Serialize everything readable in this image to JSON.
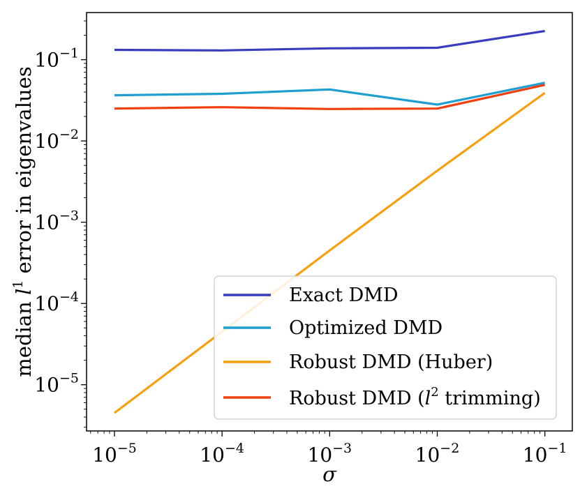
{
  "chart_data": {
    "type": "line",
    "xscale": "log",
    "yscale": "log",
    "x": [
      1e-05,
      0.0001,
      0.001,
      0.01,
      0.1
    ],
    "xlim": [
      5.5e-06,
      0.18
    ],
    "ylim": [
      2.7e-06,
      0.38
    ],
    "xlabel": "σ",
    "ylabel": {
      "prefix": "median ",
      "var": "l",
      "sup": "1",
      "suffix": " error in eigenvalues"
    },
    "xticks": [
      {
        "value": 1e-05,
        "base": "10",
        "exp": "−5"
      },
      {
        "value": 0.0001,
        "base": "10",
        "exp": "−4"
      },
      {
        "value": 0.001,
        "base": "10",
        "exp": "−3"
      },
      {
        "value": 0.01,
        "base": "10",
        "exp": "−2"
      },
      {
        "value": 0.1,
        "base": "10",
        "exp": "−1"
      }
    ],
    "yticks": [
      {
        "value": 1e-05,
        "base": "10",
        "exp": "−5"
      },
      {
        "value": 0.0001,
        "base": "10",
        "exp": "−4"
      },
      {
        "value": 0.001,
        "base": "10",
        "exp": "−3"
      },
      {
        "value": 0.01,
        "base": "10",
        "exp": "−2"
      },
      {
        "value": 0.1,
        "base": "10",
        "exp": "−1"
      }
    ],
    "grid": false,
    "legend_position": "lower-right",
    "series": [
      {
        "name": "Exact DMD",
        "color": "#3a3cbf",
        "values": [
          0.132,
          0.13,
          0.138,
          0.14,
          0.225
        ]
      },
      {
        "name": "Optimized DMD",
        "color": "#1f9fd0",
        "values": [
          0.0365,
          0.038,
          0.043,
          0.028,
          0.052
        ]
      },
      {
        "name": "Robust DMD (Huber)",
        "color": "#f5a00f",
        "values": [
          4.5e-06,
          4.5e-05,
          0.00045,
          0.0043,
          0.039
        ]
      },
      {
        "name": "Robust DMD (",
        "name_var": "l",
        "name_sup": "2",
        "name_suffix": " trimming)",
        "color": "#f04010",
        "values": [
          0.025,
          0.026,
          0.0247,
          0.025,
          0.049
        ]
      }
    ]
  }
}
